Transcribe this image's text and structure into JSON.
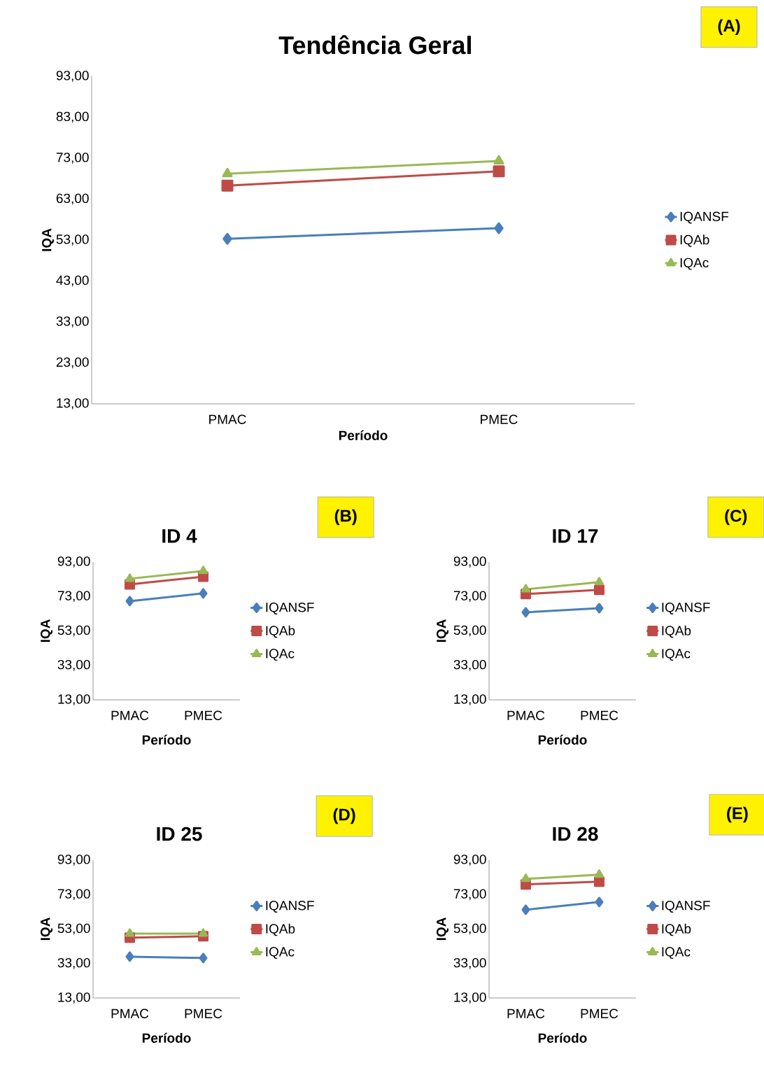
{
  "chart_data": [
    {
      "type": "line",
      "title": "Tendência Geral",
      "xlabel": "Período",
      "ylabel": "IQA",
      "categories": [
        "PMAC",
        "PMEC"
      ],
      "ylim": [
        13,
        93
      ],
      "yticks": [
        {
          "value": 13,
          "label": "13,00"
        },
        {
          "value": 23,
          "label": "23,00"
        },
        {
          "value": 33,
          "label": "33,00"
        },
        {
          "value": 43,
          "label": "43,00"
        },
        {
          "value": 53,
          "label": "53,00"
        },
        {
          "value": 63,
          "label": "63,00"
        },
        {
          "value": 73,
          "label": "73,00"
        },
        {
          "value": 83,
          "label": "83,00"
        },
        {
          "value": 93,
          "label": "93,00"
        }
      ],
      "series": [
        {
          "name": "IQANSF",
          "color": "#4a7ebb",
          "marker": "diamond",
          "values": [
            53.3,
            55.9
          ]
        },
        {
          "name": "IQAb",
          "color": "#be4b48",
          "marker": "square",
          "values": [
            66.3,
            69.8
          ]
        },
        {
          "name": "IQAc",
          "color": "#98b954",
          "marker": "triangle",
          "values": [
            69.2,
            72.3
          ]
        }
      ],
      "legend": "right",
      "grid": false,
      "annotations": [
        "(A)"
      ]
    },
    {
      "type": "line",
      "title": "ID 4",
      "xlabel": "Período",
      "ylabel": "IQA",
      "categories": [
        "PMAC",
        "PMEC"
      ],
      "ylim": [
        13,
        93
      ],
      "yticks": [
        {
          "value": 13,
          "label": "13,00"
        },
        {
          "value": 33,
          "label": "33,00"
        },
        {
          "value": 53,
          "label": "53,00"
        },
        {
          "value": 73,
          "label": "73,00"
        },
        {
          "value": 93,
          "label": "93,00"
        }
      ],
      "series": [
        {
          "name": "IQANSF",
          "color": "#4a7ebb",
          "marker": "diamond",
          "values": [
            70.3,
            74.8
          ]
        },
        {
          "name": "IQAb",
          "color": "#be4b48",
          "marker": "square",
          "values": [
            80.0,
            84.5
          ]
        },
        {
          "name": "IQAc",
          "color": "#98b954",
          "marker": "triangle",
          "values": [
            83.3,
            87.8
          ]
        }
      ],
      "legend": "right",
      "grid": false,
      "annotations": [
        "(B)"
      ]
    },
    {
      "type": "line",
      "title": "ID 17",
      "xlabel": "Período",
      "ylabel": "IQA",
      "categories": [
        "PMAC",
        "PMEC"
      ],
      "ylim": [
        13,
        93
      ],
      "yticks": [
        {
          "value": 13,
          "label": "13,00"
        },
        {
          "value": 33,
          "label": "33,00"
        },
        {
          "value": 53,
          "label": "53,00"
        },
        {
          "value": 73,
          "label": "73,00"
        },
        {
          "value": 93,
          "label": "93,00"
        }
      ],
      "series": [
        {
          "name": "IQANSF",
          "color": "#4a7ebb",
          "marker": "diamond",
          "values": [
            63.8,
            66.2
          ]
        },
        {
          "name": "IQAb",
          "color": "#be4b48",
          "marker": "square",
          "values": [
            74.4,
            76.9
          ]
        },
        {
          "name": "IQAc",
          "color": "#98b954",
          "marker": "triangle",
          "values": [
            77.2,
            81.3
          ]
        }
      ],
      "legend": "right",
      "grid": false,
      "annotations": [
        "(C)"
      ]
    },
    {
      "type": "line",
      "title": "ID 25",
      "xlabel": "Período",
      "ylabel": "IQA",
      "categories": [
        "PMAC",
        "PMEC"
      ],
      "ylim": [
        13,
        93
      ],
      "yticks": [
        {
          "value": 13,
          "label": "13,00"
        },
        {
          "value": 33,
          "label": "33,00"
        },
        {
          "value": 53,
          "label": "53,00"
        },
        {
          "value": 73,
          "label": "73,00"
        },
        {
          "value": 93,
          "label": "93,00"
        }
      ],
      "series": [
        {
          "name": "IQANSF",
          "color": "#4a7ebb",
          "marker": "diamond",
          "values": [
            37.0,
            36.2
          ]
        },
        {
          "name": "IQAb",
          "color": "#be4b48",
          "marker": "square",
          "values": [
            48.0,
            48.8
          ]
        },
        {
          "name": "IQAc",
          "color": "#98b954",
          "marker": "triangle",
          "values": [
            50.4,
            50.4
          ]
        }
      ],
      "legend": "right",
      "grid": false,
      "annotations": [
        "(D)"
      ]
    },
    {
      "type": "line",
      "title": "ID 28",
      "xlabel": "Período",
      "ylabel": "IQA",
      "categories": [
        "PMAC",
        "PMEC"
      ],
      "ylim": [
        13,
        93
      ],
      "yticks": [
        {
          "value": 13,
          "label": "13,00"
        },
        {
          "value": 33,
          "label": "33,00"
        },
        {
          "value": 53,
          "label": "53,00"
        },
        {
          "value": 73,
          "label": "73,00"
        },
        {
          "value": 93,
          "label": "93,00"
        }
      ],
      "series": [
        {
          "name": "IQANSF",
          "color": "#4a7ebb",
          "marker": "diamond",
          "values": [
            64.2,
            68.7
          ]
        },
        {
          "name": "IQAb",
          "color": "#be4b48",
          "marker": "square",
          "values": [
            78.9,
            80.5
          ]
        },
        {
          "name": "IQAc",
          "color": "#98b954",
          "marker": "triangle",
          "values": [
            82.1,
            84.6
          ]
        }
      ],
      "legend": "right",
      "grid": false,
      "annotations": [
        "(E)"
      ]
    }
  ]
}
